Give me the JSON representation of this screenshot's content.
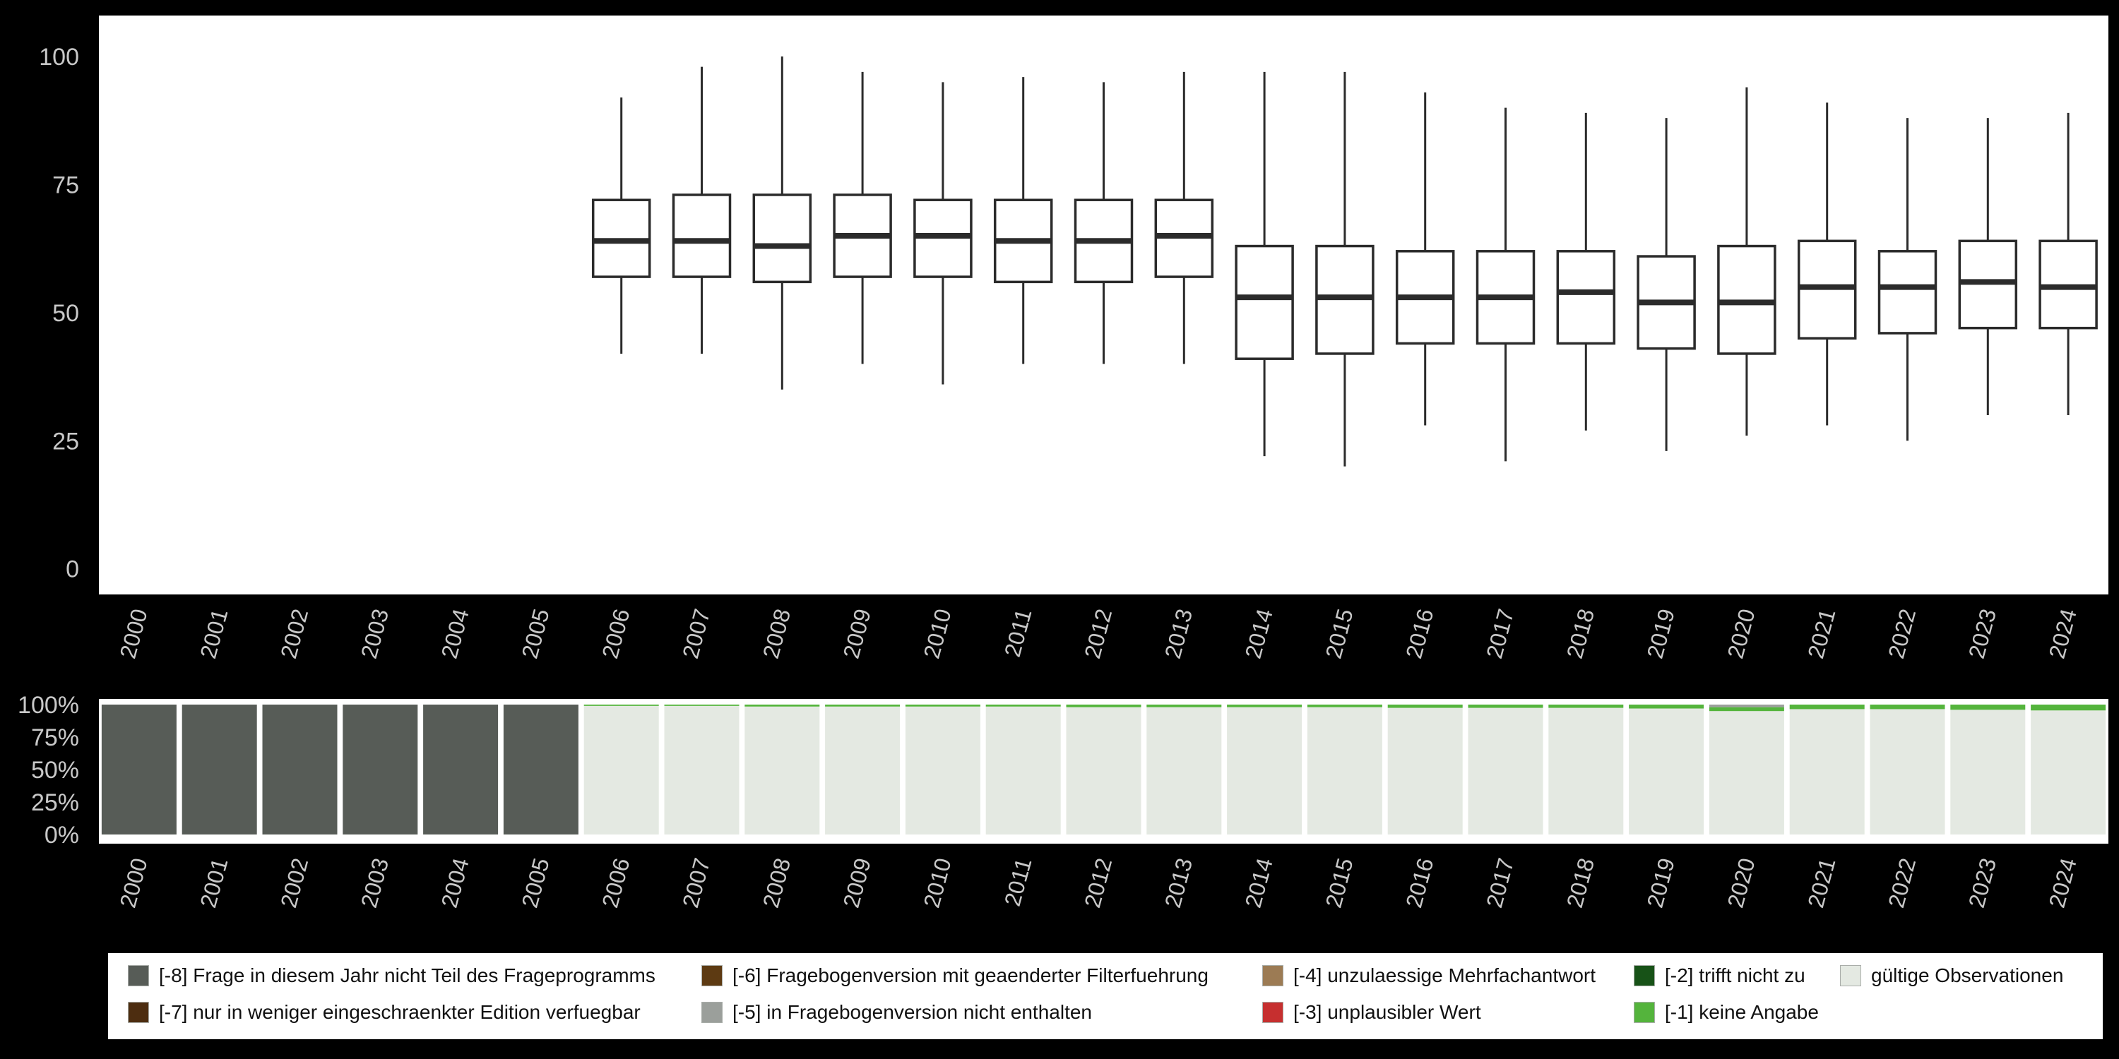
{
  "colors": {
    "background": "#000000",
    "panel": "#ffffff",
    "axis_text": "#c8c8c8",
    "box_stroke": "#2b2b2b",
    "categories": {
      "-8": "#575c57",
      "-7": "#4d2d10",
      "-6": "#5d3a12",
      "-5": "#9b9f9b",
      "-4": "#9c7b54",
      "-3": "#c62f2f",
      "-2": "#175217",
      "-1": "#54b43c",
      "valid": "#e4e9e2"
    }
  },
  "chart_data": [
    {
      "type": "boxplot",
      "title": "",
      "xlabel": "",
      "ylabel": "",
      "categories": [
        "2000",
        "2001",
        "2002",
        "2003",
        "2004",
        "2005",
        "2006",
        "2007",
        "2008",
        "2009",
        "2010",
        "2011",
        "2012",
        "2013",
        "2014",
        "2015",
        "2016",
        "2017",
        "2018",
        "2019",
        "2020",
        "2021",
        "2022",
        "2023",
        "2024"
      ],
      "yticks": [
        0,
        25,
        50,
        75,
        100
      ],
      "ylim": [
        -5,
        108
      ],
      "grid": false,
      "boxes": [
        null,
        null,
        null,
        null,
        null,
        null,
        {
          "low": 42,
          "q1": 57,
          "median": 64,
          "q3": 72,
          "high": 92
        },
        {
          "low": 42,
          "q1": 57,
          "median": 64,
          "q3": 73,
          "high": 98
        },
        {
          "low": 35,
          "q1": 56,
          "median": 63,
          "q3": 73,
          "high": 100
        },
        {
          "low": 40,
          "q1": 57,
          "median": 65,
          "q3": 73,
          "high": 97
        },
        {
          "low": 36,
          "q1": 57,
          "median": 65,
          "q3": 72,
          "high": 95
        },
        {
          "low": 40,
          "q1": 56,
          "median": 64,
          "q3": 72,
          "high": 96
        },
        {
          "low": 40,
          "q1": 56,
          "median": 64,
          "q3": 72,
          "high": 95
        },
        {
          "low": 40,
          "q1": 57,
          "median": 65,
          "q3": 72,
          "high": 97
        },
        {
          "low": 22,
          "q1": 41,
          "median": 53,
          "q3": 63,
          "high": 97
        },
        {
          "low": 20,
          "q1": 42,
          "median": 53,
          "q3": 63,
          "high": 97
        },
        {
          "low": 28,
          "q1": 44,
          "median": 53,
          "q3": 62,
          "high": 93
        },
        {
          "low": 21,
          "q1": 44,
          "median": 53,
          "q3": 62,
          "high": 90
        },
        {
          "low": 27,
          "q1": 44,
          "median": 54,
          "q3": 62,
          "high": 89
        },
        {
          "low": 23,
          "q1": 43,
          "median": 52,
          "q3": 61,
          "high": 88
        },
        {
          "low": 26,
          "q1": 42,
          "median": 52,
          "q3": 63,
          "high": 94
        },
        {
          "low": 28,
          "q1": 45,
          "median": 55,
          "q3": 64,
          "high": 91
        },
        {
          "low": 25,
          "q1": 46,
          "median": 55,
          "q3": 62,
          "high": 88
        },
        {
          "low": 30,
          "q1": 47,
          "median": 56,
          "q3": 64,
          "high": 88
        },
        {
          "low": 30,
          "q1": 47,
          "median": 55,
          "q3": 64,
          "high": 89
        }
      ]
    },
    {
      "type": "bar",
      "stacked": true,
      "percent": true,
      "title": "",
      "xlabel": "",
      "ylabel": "",
      "categories": [
        "2000",
        "2001",
        "2002",
        "2003",
        "2004",
        "2005",
        "2006",
        "2007",
        "2008",
        "2009",
        "2010",
        "2011",
        "2012",
        "2013",
        "2014",
        "2015",
        "2016",
        "2017",
        "2018",
        "2019",
        "2020",
        "2021",
        "2022",
        "2023",
        "2024"
      ],
      "ytick_labels": [
        "0%",
        "25%",
        "50%",
        "75%",
        "100%"
      ],
      "grid": false,
      "legend_position": "bottom",
      "series": [
        {
          "name": "gültige Observationen",
          "code": "valid",
          "values": [
            0,
            0,
            0,
            0,
            0,
            0,
            99,
            99,
            98.5,
            98.5,
            98.5,
            98.5,
            98,
            98,
            98,
            98,
            97.5,
            97.5,
            97.5,
            97,
            95,
            96.5,
            96.5,
            96,
            95.5
          ]
        },
        {
          "name": "[-1] keine Angabe",
          "code": "-1",
          "values": [
            0,
            0,
            0,
            0,
            0,
            0,
            1,
            1,
            1.5,
            1.5,
            1.5,
            1.5,
            2,
            2,
            2,
            2,
            2.5,
            2.5,
            2.5,
            3,
            3,
            3.5,
            3.5,
            4,
            4.5
          ]
        },
        {
          "name": "[-5] in Fragebogenversion nicht enthalten",
          "code": "-5",
          "values": [
            0,
            0,
            0,
            0,
            0,
            0,
            0,
            0,
            0,
            0,
            0,
            0,
            0,
            0,
            0,
            0,
            0,
            0,
            0,
            0,
            2,
            0,
            0,
            0,
            0
          ]
        },
        {
          "name": "[-8] Frage in diesem Jahr nicht Teil des Frageprogramms",
          "code": "-8",
          "values": [
            100,
            100,
            100,
            100,
            100,
            100,
            0,
            0,
            0,
            0,
            0,
            0,
            0,
            0,
            0,
            0,
            0,
            0,
            0,
            0,
            0,
            0,
            0,
            0,
            0
          ]
        }
      ]
    }
  ],
  "legend": {
    "columns": [
      [
        {
          "code": "-8",
          "label": "[-8] Frage in diesem Jahr nicht Teil des Frageprogramms"
        },
        {
          "code": "-7",
          "label": "[-7] nur in weniger eingeschraenkter Edition verfuegbar"
        }
      ],
      [
        {
          "code": "-6",
          "label": "[-6] Fragebogenversion mit geaenderter Filterfuehrung"
        },
        {
          "code": "-5",
          "label": "[-5] in Fragebogenversion nicht enthalten"
        }
      ],
      [
        {
          "code": "-4",
          "label": "[-4] unzulaessige Mehrfachantwort"
        },
        {
          "code": "-3",
          "label": "[-3] unplausibler Wert"
        }
      ],
      [
        {
          "code": "-2",
          "label": "[-2] trifft nicht zu"
        },
        {
          "code": "-1",
          "label": "[-1] keine Angabe"
        }
      ],
      [
        {
          "code": "valid",
          "label": "gültige Observationen"
        }
      ]
    ]
  }
}
